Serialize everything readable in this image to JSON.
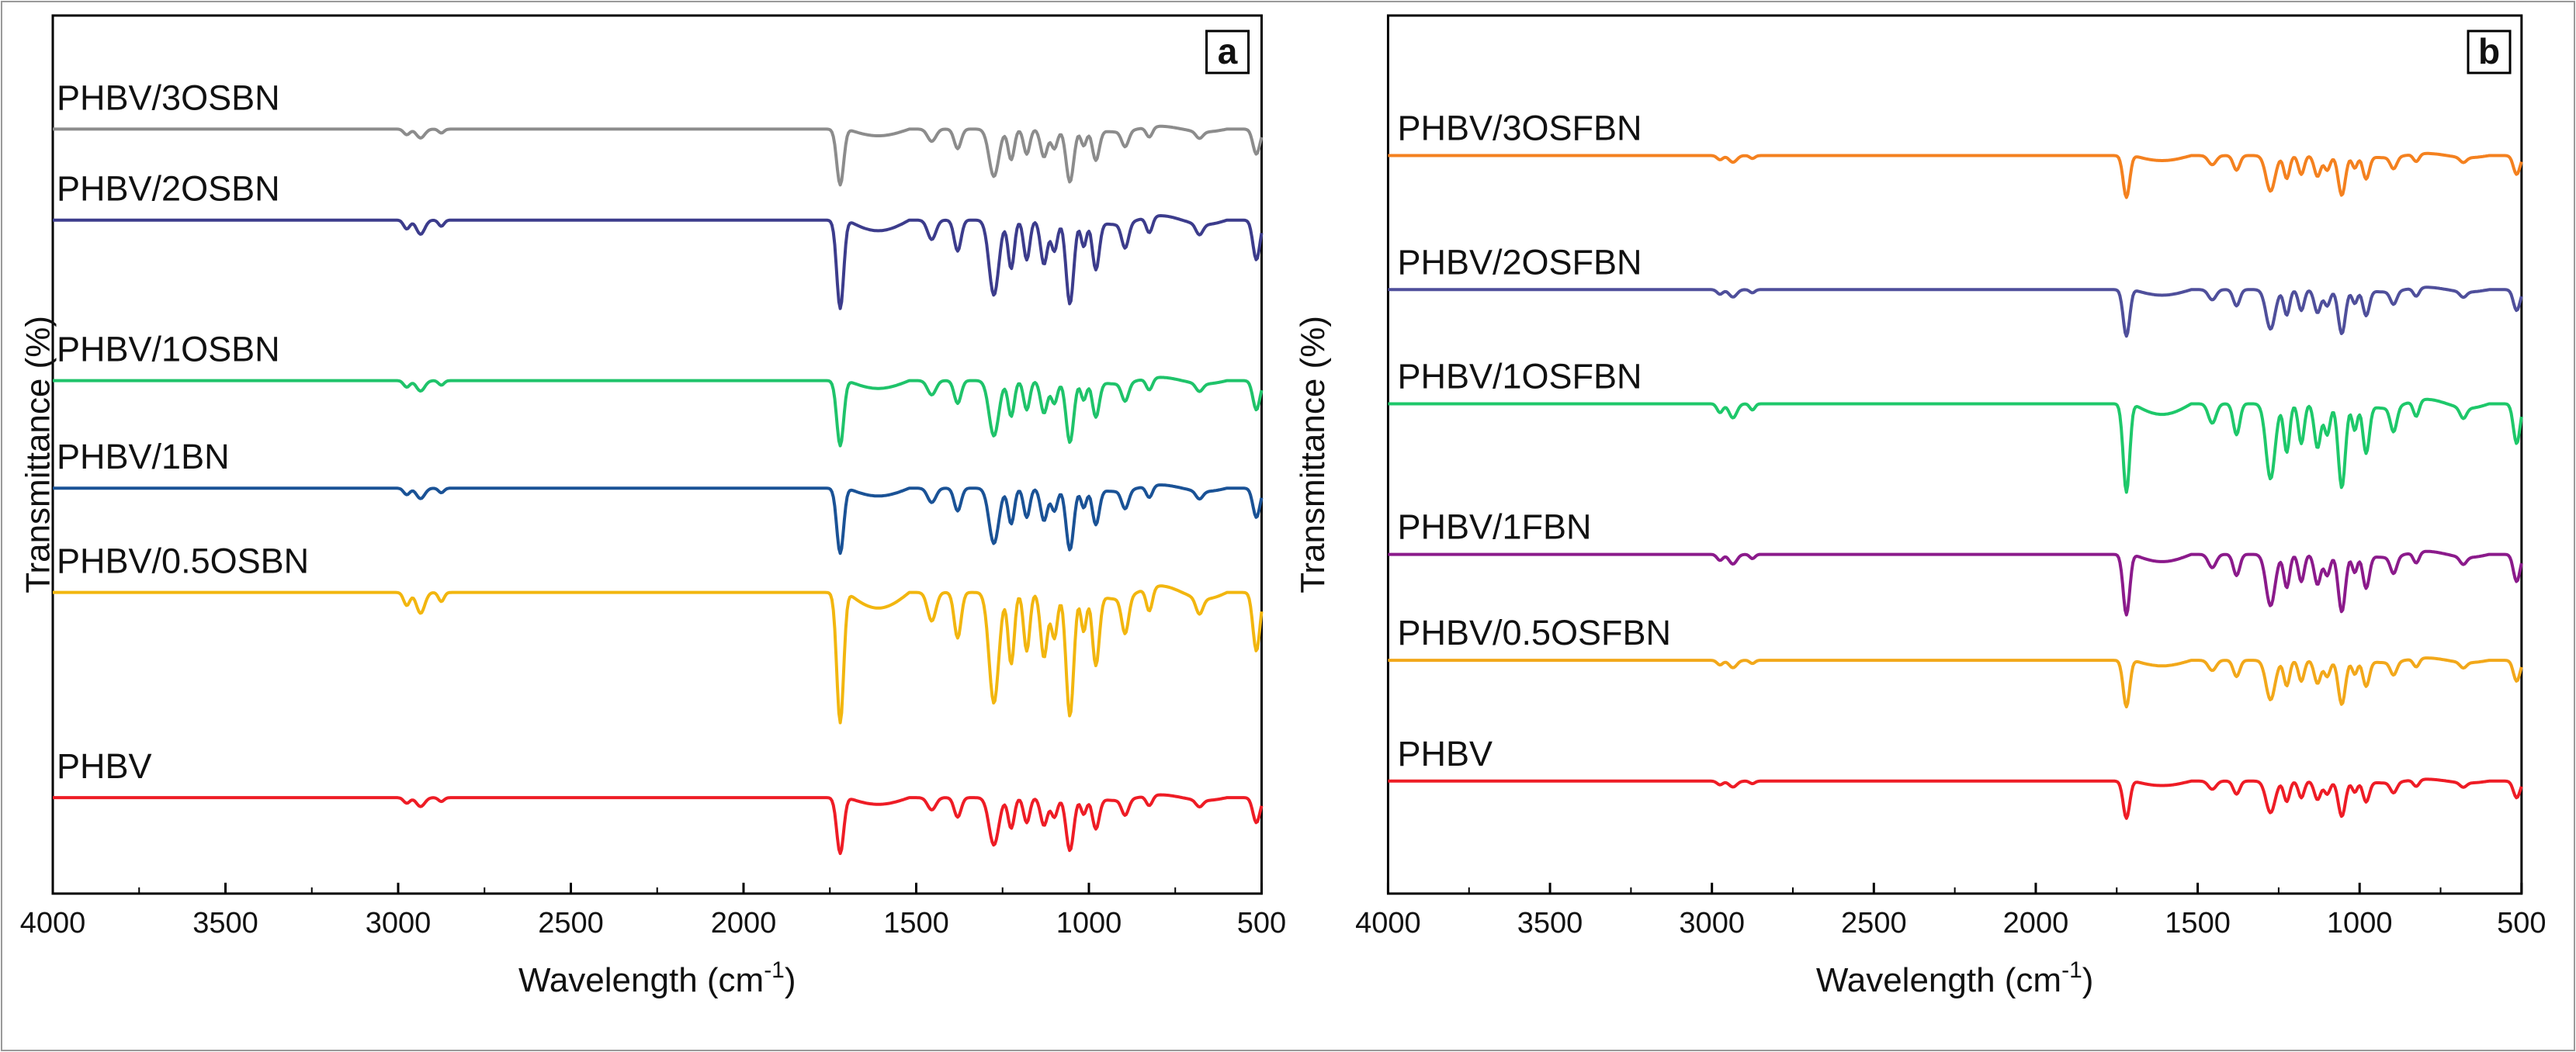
{
  "chart_data": [
    {
      "type": "line",
      "panel_label": "a",
      "xlabel": "Wavelength (cm",
      "xlabel_sup": "-1",
      "xlabel_close": ")",
      "ylabel": "Transmittance (%)",
      "xlim": [
        4000,
        500
      ],
      "xticks": [
        "4000",
        "3500",
        "3000",
        "2500",
        "2000",
        "1500",
        "1000",
        "500"
      ],
      "series": [
        {
          "name": "PHBV/3OSBN",
          "color": "#8c8c8c",
          "offset": 5,
          "scale": 0.6
        },
        {
          "name": "PHBV/2OSBN",
          "color": "#3c3c8c",
          "offset": 4,
          "scale": 0.95
        },
        {
          "name": "PHBV/1OSBN",
          "color": "#1fc36a",
          "offset": 3,
          "scale": 0.7
        },
        {
          "name": "PHBV/1BN",
          "color": "#1a5296",
          "offset": 2,
          "scale": 0.7
        },
        {
          "name": "PHBV/0.5OSBN",
          "color": "#f2b60f",
          "offset": 1,
          "scale": 1.4
        },
        {
          "name": "PHBV",
          "color": "#ee1c25",
          "offset": 0,
          "scale": 0.6
        }
      ]
    },
    {
      "type": "line",
      "panel_label": "b",
      "xlabel": "Wavelength (cm",
      "xlabel_sup": "-1",
      "xlabel_close": ")",
      "ylabel": "Transmittance (%)",
      "xlim": [
        4000,
        500
      ],
      "xticks": [
        "4000",
        "3500",
        "3000",
        "2500",
        "2000",
        "1500",
        "1000",
        "500"
      ],
      "series": [
        {
          "name": "PHBV/3OSFBN",
          "color": "#f4811f",
          "offset": 5,
          "scale": 0.45
        },
        {
          "name": "PHBV/2OSFBN",
          "color": "#4f4f9b",
          "offset": 4,
          "scale": 0.5
        },
        {
          "name": "PHBV/1OSFBN",
          "color": "#1ec86a",
          "offset": 3,
          "scale": 0.95
        },
        {
          "name": "PHBV/1FBN",
          "color": "#8b1a8b",
          "offset": 2,
          "scale": 0.65
        },
        {
          "name": "PHBV/0.5OSFBN",
          "color": "#f2a81a",
          "offset": 1,
          "scale": 0.5
        },
        {
          "name": "PHBV",
          "color": "#ee1c25",
          "offset": 0,
          "scale": 0.4
        }
      ]
    }
  ]
}
